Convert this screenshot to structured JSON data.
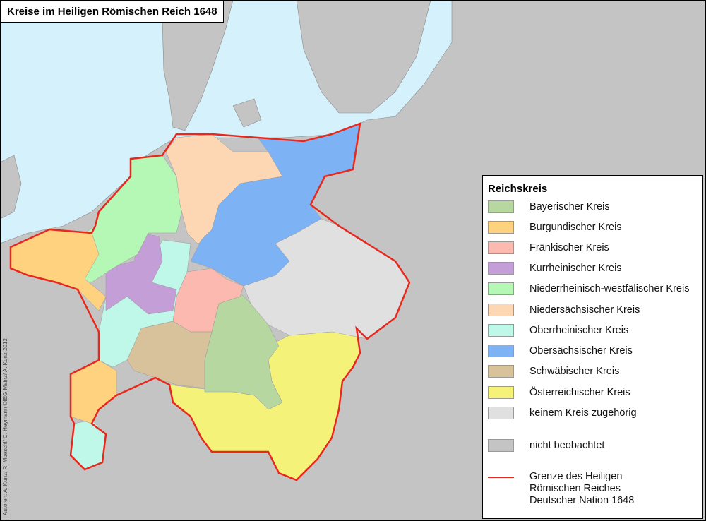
{
  "title": "Kreise im Heiligen Römischen Reich 1648",
  "credit": "Autoren: A. Kunz/ R. Moeschl/ C. Heymann ©IEG Mainz/ A. Kunz 2012",
  "colors": {
    "sea": "#d5f1fb",
    "land": "#c4c4c4",
    "border": "#e8281c"
  },
  "legend": {
    "heading": "Reichskreis",
    "items": [
      {
        "label": "Bayerischer Kreis",
        "color": "#b6d7a0"
      },
      {
        "label": "Burgundischer Kreis",
        "color": "#ffd27f"
      },
      {
        "label": "Fränkischer Kreis",
        "color": "#fbb9b0"
      },
      {
        "label": "Kurrheinischer Kreis",
        "color": "#c49ed6"
      },
      {
        "label": "Niederrheinisch-westfälischer Kreis",
        "color": "#b5f7b5"
      },
      {
        "label": "Niedersächsischer Kreis",
        "color": "#fdd6b4"
      },
      {
        "label": "Oberrheinischer Kreis",
        "color": "#bff7e9"
      },
      {
        "label": "Obersächsischer Kreis",
        "color": "#7db3f5"
      },
      {
        "label": "Schwäbischer Kreis",
        "color": "#d7c29b"
      },
      {
        "label": "Österreichischer Kreis",
        "color": "#f5f27a"
      },
      {
        "label": "keinem Kreis zugehörig",
        "color": "#e0e0e0"
      },
      {
        "label": "nicht beobachtet",
        "color": "#c4c4c4"
      }
    ],
    "border_line": [
      "Grenze des Heiligen",
      "Römischen Reiches",
      "Deutscher Nation 1648"
    ]
  }
}
